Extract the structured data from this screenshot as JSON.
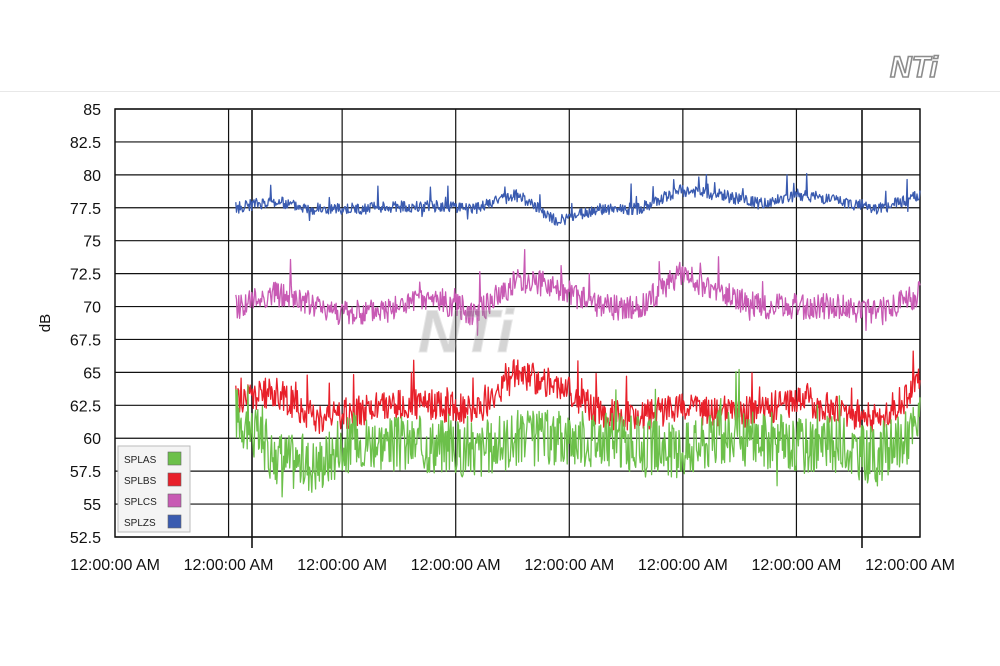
{
  "brand": {
    "logo_text": "NTi",
    "watermark_text": "NTi"
  },
  "chart_data": {
    "type": "line",
    "title": "",
    "xlabel": "",
    "ylabel": "dB",
    "ylim": [
      52.5,
      85
    ],
    "y_ticks": [
      52.5,
      55,
      57.5,
      60,
      62.5,
      65,
      67.5,
      70,
      72.5,
      75,
      77.5,
      80,
      82.5,
      85
    ],
    "x_tick_labels": [
      "12:00:00 AM",
      "12:00:00 AM",
      "12:00:00 AM",
      "12:00:00 AM",
      "12:00:00 AM",
      "12:00:00 AM",
      "12:00:00 AM",
      "12:00:00 AM"
    ],
    "x_range": [
      0,
      1
    ],
    "grid": true,
    "legend_position": "bottom-left",
    "x": [
      0.15,
      0.2,
      0.25,
      0.3,
      0.35,
      0.4,
      0.45,
      0.5,
      0.55,
      0.6,
      0.65,
      0.7,
      0.75,
      0.8,
      0.85,
      0.9,
      0.95,
      1.0
    ],
    "series": [
      {
        "name": "SPLAS",
        "color": "#6cc04a",
        "values": [
          62,
          58.5,
          58,
          60,
          59.5,
          59.5,
          59,
          60,
          60,
          60,
          59.5,
          59,
          60,
          60,
          59.5,
          59.5,
          58.5,
          61
        ]
      },
      {
        "name": "SPLBS",
        "color": "#e8202a",
        "values": [
          63,
          63.5,
          61.5,
          62,
          62.5,
          62.5,
          62,
          65,
          64,
          62,
          61.5,
          62.5,
          62,
          62,
          63,
          62,
          61.5,
          64
        ]
      },
      {
        "name": "SPLCS",
        "color": "#c85ab4",
        "values": [
          70,
          71,
          70,
          69.3,
          70,
          70.5,
          69.5,
          72,
          71.5,
          70,
          69.8,
          72.5,
          71,
          70,
          70,
          70,
          69.5,
          71
        ]
      },
      {
        "name": "SPLZS",
        "color": "#3a5bb0",
        "values": [
          77.5,
          78,
          77.4,
          77.4,
          77.6,
          77.6,
          77.5,
          78.5,
          76.5,
          77.4,
          77.4,
          78.8,
          78.5,
          77.8,
          78.5,
          78,
          77.4,
          78.5
        ]
      }
    ]
  }
}
